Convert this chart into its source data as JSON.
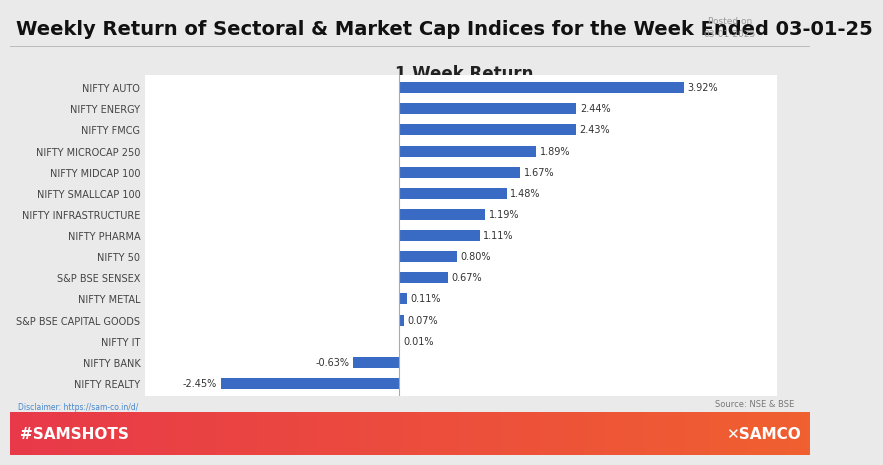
{
  "title": "Weekly Return of Sectoral & Market Cap Indices for the Week Ended 03-01-25",
  "posted_on": "Posted on\n03-01-2025",
  "chart_title": "1 Week Return",
  "source": "Source: NSE & BSE",
  "disclaimer": "Disclaimer: https://sam-co.in/d/",
  "categories": [
    "NIFTY REALTY",
    "NIFTY BANK",
    "NIFTY IT",
    "S&P BSE CAPITAL GOODS",
    "NIFTY METAL",
    "S&P BSE SENSEX",
    "NIFTY 50",
    "NIFTY PHARMA",
    "NIFTY INFRASTRUCTURE",
    "NIFTY SMALLCAP 100",
    "NIFTY MIDCAP 100",
    "NIFTY MICROCAP 250",
    "NIFTY FMCG",
    "NIFTY ENERGY",
    "NIFTY AUTO"
  ],
  "values": [
    -2.45,
    -0.63,
    0.01,
    0.07,
    0.11,
    0.67,
    0.8,
    1.11,
    1.19,
    1.48,
    1.67,
    1.89,
    2.43,
    2.44,
    3.92
  ],
  "bar_color": "#3A6BC4",
  "background_outer": "#EAEAEA",
  "background_inner": "#FFFFFF",
  "title_fontsize": 14,
  "chart_title_fontsize": 12,
  "label_fontsize": 7,
  "value_fontsize": 7,
  "footer_color_left": "#E8394A",
  "footer_color_right": "#F06030",
  "samshots_text": "#SAMSHOTS",
  "samco_text": "✕SAMCO"
}
